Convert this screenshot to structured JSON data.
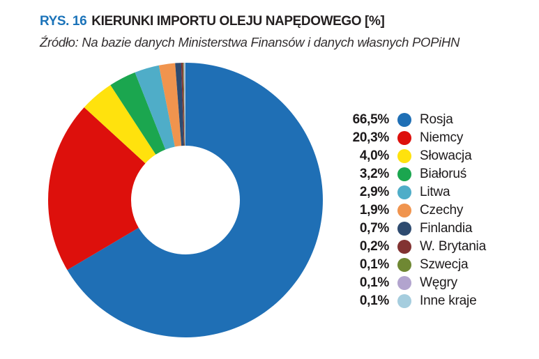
{
  "header": {
    "title_prefix": "RYS. 16",
    "title": "KIERUNKI IMPORTU OLEJU NAPĘDOWEGO [%]",
    "source": "Źródło: Na bazie danych Ministerstwa Finansów i danych własnych POPiHN"
  },
  "colors": {
    "title_prefix": "#1b73b9",
    "title_text": "#231f20",
    "legend_text": "#1d1a1b",
    "background": "#ffffff"
  },
  "chart_data": {
    "type": "pie",
    "style": "donut",
    "title": "KIERUNKI IMPORTU OLEJU NAPĘDOWEGO [%]",
    "unit": "%",
    "start_angle_deg": 0,
    "direction": "clockwise",
    "inner_radius_ratio": 0.396,
    "legend_position": "right",
    "items": [
      {
        "label": "Rosja",
        "value": 66.5,
        "pct_label": "66,5%",
        "color": "#1f6fb5"
      },
      {
        "label": "Niemcy",
        "value": 20.3,
        "pct_label": "20,3%",
        "color": "#dd100c"
      },
      {
        "label": "Słowacja",
        "value": 4.0,
        "pct_label": "4,0%",
        "color": "#ffe20d"
      },
      {
        "label": "Białoruś",
        "value": 3.2,
        "pct_label": "3,2%",
        "color": "#1ba64f"
      },
      {
        "label": "Litwa",
        "value": 2.9,
        "pct_label": "2,9%",
        "color": "#4fadc8"
      },
      {
        "label": "Czechy",
        "value": 1.9,
        "pct_label": "1,9%",
        "color": "#f0944e"
      },
      {
        "label": "Finlandia",
        "value": 0.7,
        "pct_label": "0,7%",
        "color": "#2e4b70"
      },
      {
        "label": "W. Brytania",
        "value": 0.2,
        "pct_label": "0,2%",
        "color": "#823332"
      },
      {
        "label": "Szwecja",
        "value": 0.1,
        "pct_label": "0,1%",
        "color": "#6f8833"
      },
      {
        "label": "Węgry",
        "value": 0.1,
        "pct_label": "0,1%",
        "color": "#b2a4ce"
      },
      {
        "label": "Inne kraje",
        "value": 0.1,
        "pct_label": "0,1%",
        "color": "#a5cdde"
      }
    ]
  }
}
